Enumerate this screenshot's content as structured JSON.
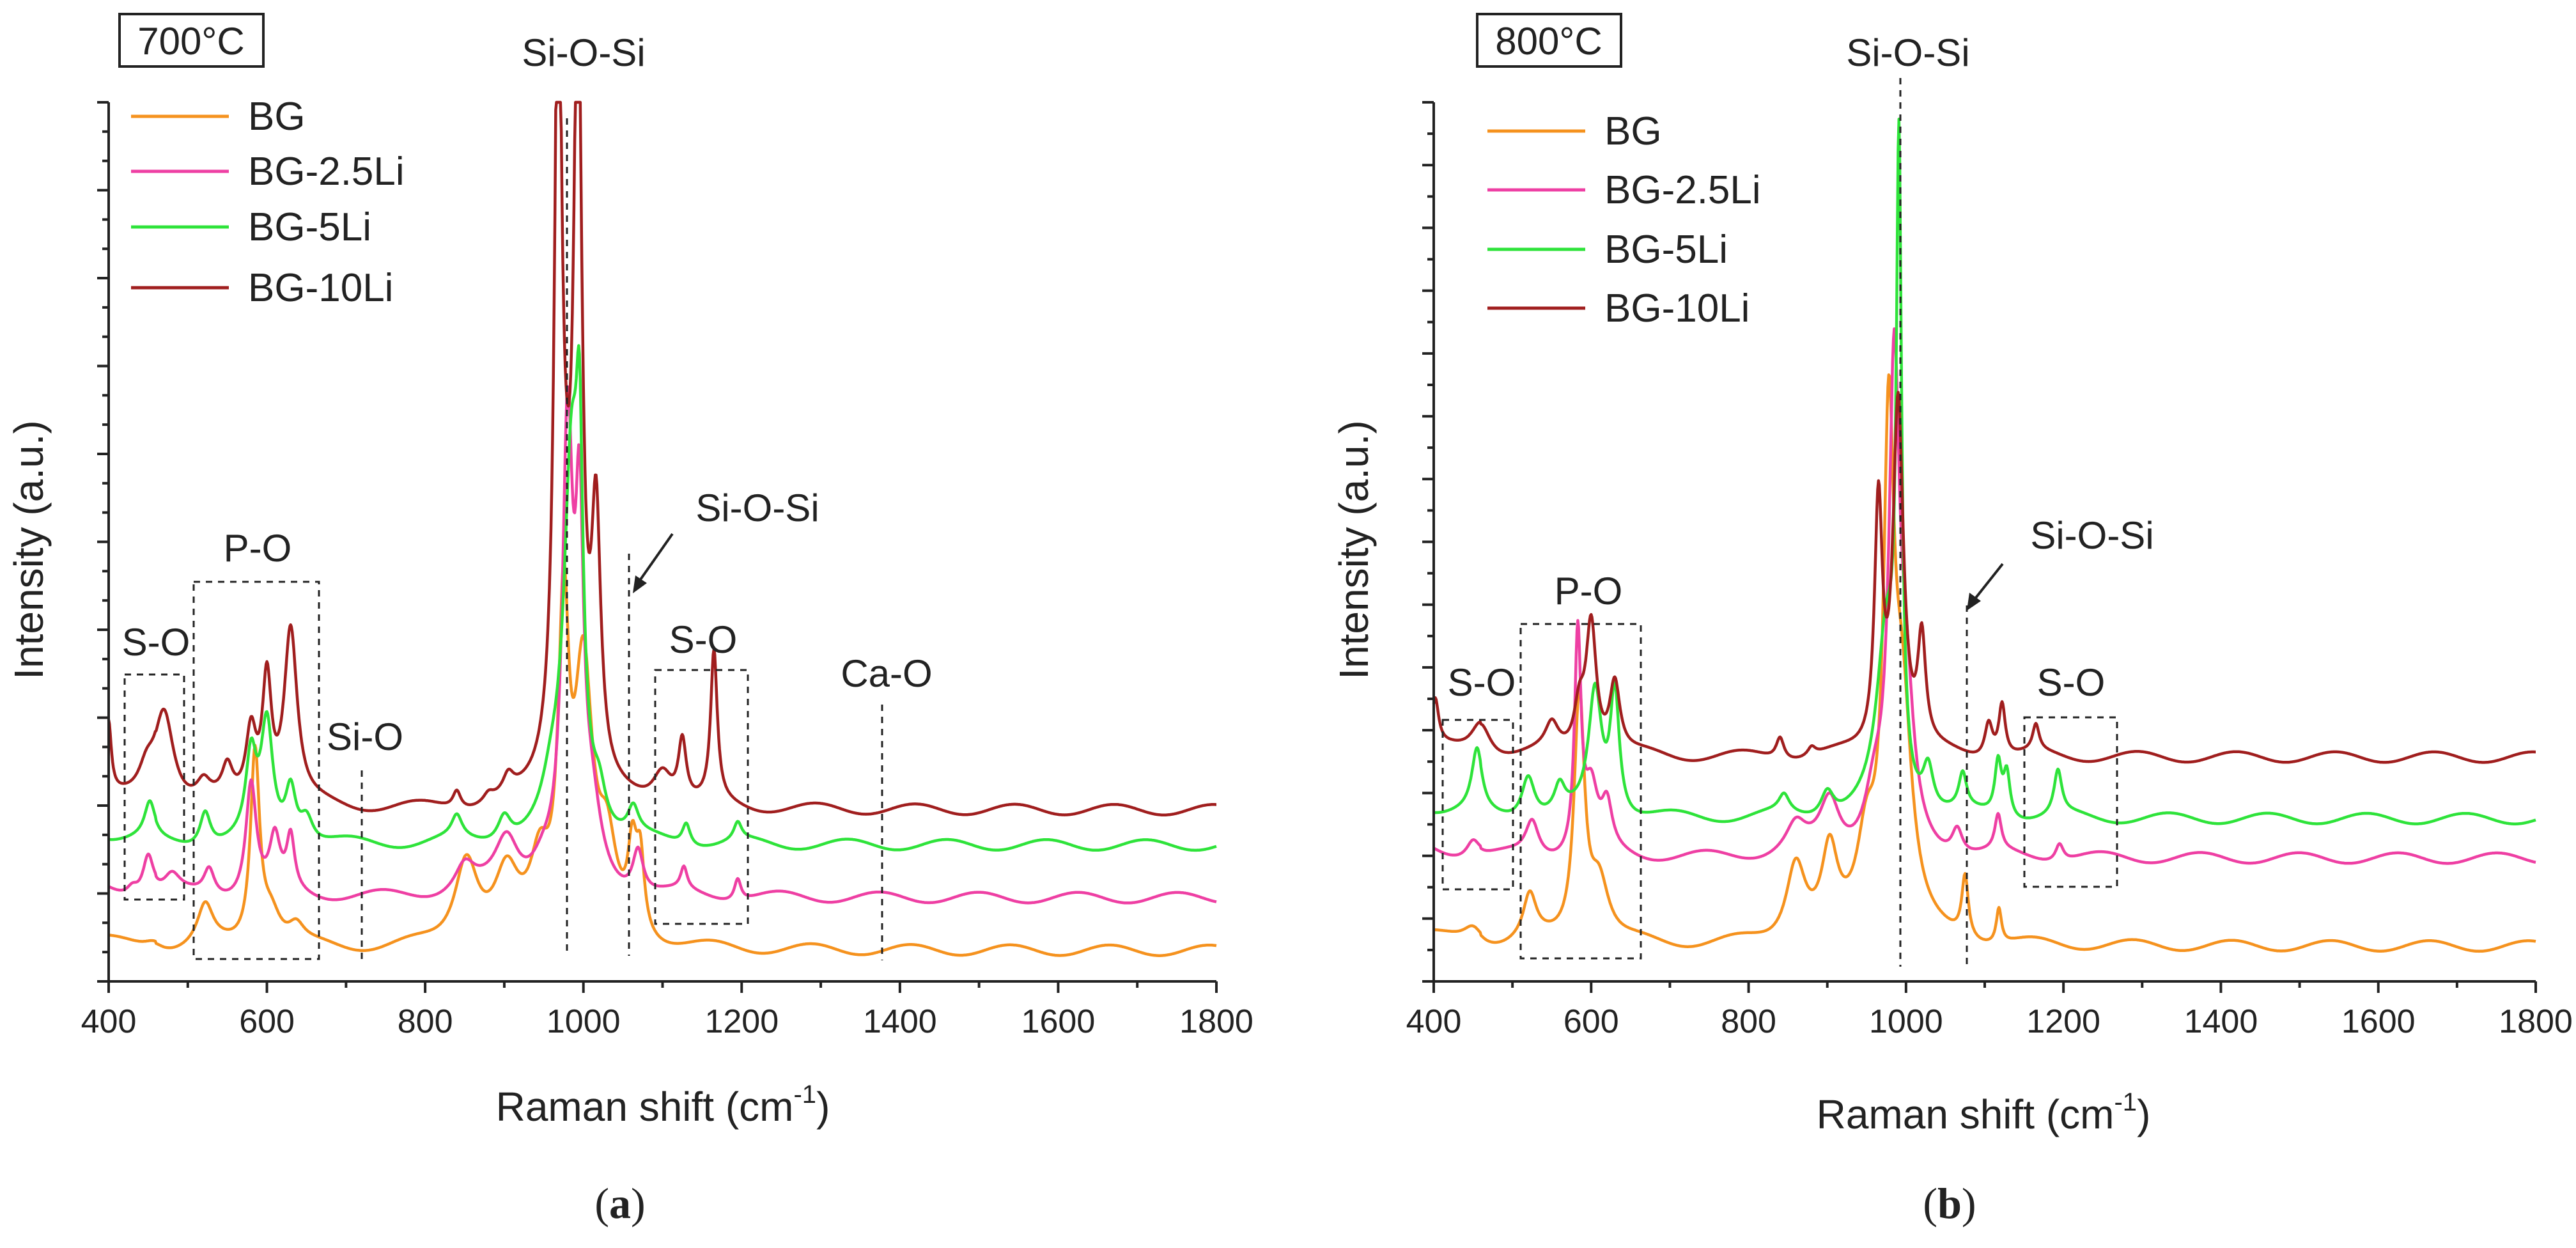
{
  "chart_data": [
    {
      "type": "line",
      "panel_label": "(a)",
      "panel_label_parts": [
        "(",
        "a",
        ")"
      ],
      "temperature_label": "700°C",
      "xlabel": "Raman shift (cm-1)",
      "xlabel_parts": [
        "Raman shift (cm",
        "-1",
        ")"
      ],
      "ylabel": "Intensity (a.u.)",
      "xlim": [
        400,
        1800
      ],
      "ylim": [
        0,
        1
      ],
      "x_ticks": [
        400,
        600,
        800,
        1000,
        1200,
        1400,
        1600,
        1800
      ],
      "grid": false,
      "legend_position": "top-left",
      "series": [
        {
          "name": "BG",
          "color": "#f5921e",
          "baseline": 0.035,
          "noise": 0.006,
          "peaks": [
            [
              457,
              0.01,
              15
            ],
            [
              522,
              0.045,
              12
            ],
            [
              585,
              0.22,
              7
            ],
            [
              605,
              0.04,
              15
            ],
            [
              637,
              0.02,
              12
            ],
            [
              852,
              0.1,
              18
            ],
            [
              903,
              0.07,
              18
            ],
            [
              945,
              0.08,
              15
            ],
            [
              975,
              0.35,
              8
            ],
            [
              1000,
              0.3,
              14
            ],
            [
              1030,
              0.09,
              14
            ],
            [
              1062,
              0.09,
              7
            ],
            [
              1072,
              0.08,
              6
            ]
          ]
        },
        {
          "name": "BG-2.5Li",
          "color": "#ee3fa3",
          "baseline": 0.095,
          "noise": 0.006,
          "peaks": [
            [
              430,
              0.01,
              8
            ],
            [
              450,
              0.045,
              8
            ],
            [
              480,
              0.02,
              12
            ],
            [
              527,
              0.03,
              8
            ],
            [
              580,
              0.13,
              8
            ],
            [
              610,
              0.06,
              8
            ],
            [
              630,
              0.06,
              6
            ],
            [
              850,
              0.03,
              15
            ],
            [
              903,
              0.06,
              18
            ],
            [
              950,
              0.03,
              20
            ],
            [
              980,
              0.5,
              8
            ],
            [
              995,
              0.35,
              6
            ],
            [
              1010,
              0.08,
              15
            ],
            [
              1069,
              0.05,
              8
            ],
            [
              1127,
              0.025,
              5
            ],
            [
              1195,
              0.025,
              5
            ]
          ]
        },
        {
          "name": "BG-5Li",
          "color": "#2ee33a",
          "baseline": 0.155,
          "noise": 0.006,
          "peaks": [
            [
              452,
              0.04,
              8
            ],
            [
              522,
              0.04,
              8
            ],
            [
              580,
              0.09,
              8
            ],
            [
              600,
              0.13,
              9
            ],
            [
              630,
              0.06,
              8
            ],
            [
              650,
              0.03,
              10
            ],
            [
              840,
              0.025,
              8
            ],
            [
              900,
              0.03,
              10
            ],
            [
              960,
              0.04,
              15
            ],
            [
              985,
              0.42,
              12
            ],
            [
              995,
              0.3,
              5
            ],
            [
              1020,
              0.04,
              10
            ],
            [
              1063,
              0.03,
              8
            ],
            [
              1130,
              0.025,
              6
            ],
            [
              1195,
              0.02,
              6
            ]
          ]
        },
        {
          "name": "BG-10Li",
          "color": "#a01e1e",
          "baseline": 0.195,
          "noise": 0.006,
          "peaks": [
            [
              400,
              0.08,
              4
            ],
            [
              448,
              0.03,
              12
            ],
            [
              470,
              0.11,
              15
            ],
            [
              520,
              0.02,
              10
            ],
            [
              550,
              0.035,
              8
            ],
            [
              580,
              0.08,
              8
            ],
            [
              600,
              0.14,
              7
            ],
            [
              630,
              0.2,
              10
            ],
            [
              840,
              0.02,
              6
            ],
            [
              880,
              0.01,
              8
            ],
            [
              905,
              0.02,
              8
            ],
            [
              968,
              0.84,
              5
            ],
            [
              975,
              0.2,
              15
            ],
            [
              993,
              0.86,
              6
            ],
            [
              1016,
              0.29,
              7
            ],
            [
              1100,
              0.04,
              15
            ],
            [
              1125,
              0.07,
              6
            ],
            [
              1165,
              0.17,
              5
            ]
          ]
        }
      ],
      "annotations": [
        {
          "text": "Si-O-Si",
          "x": 990
        },
        {
          "text": "Si-O-Si",
          "x": 1058
        },
        {
          "text": "P-O",
          "x": 590
        },
        {
          "text": "S-O",
          "x": 462
        },
        {
          "text": "S-O",
          "x": 1150
        },
        {
          "text": "Si-O",
          "x": 720
        },
        {
          "text": "Ca-O",
          "x": 1377
        }
      ]
    },
    {
      "type": "line",
      "panel_label": "(b)",
      "panel_label_parts": [
        "(",
        "b",
        ")"
      ],
      "temperature_label": "800°C",
      "xlabel": "Raman shift (cm-1)",
      "xlabel_parts": [
        "Raman shift (cm",
        "-1",
        ")"
      ],
      "ylabel": "Intensity (a.u.)",
      "xlim": [
        400,
        1800
      ],
      "ylim": [
        0,
        1
      ],
      "x_ticks": [
        400,
        600,
        800,
        1000,
        1200,
        1400,
        1600,
        1800
      ],
      "grid": false,
      "legend_position": "top-left",
      "series": [
        {
          "name": "BG",
          "color": "#f5921e",
          "baseline": 0.04,
          "noise": 0.005,
          "peaks": [
            [
              450,
              0.02,
              15
            ],
            [
              522,
              0.05,
              10
            ],
            [
              585,
              0.28,
              8
            ],
            [
              610,
              0.07,
              15
            ],
            [
              860,
              0.09,
              15
            ],
            [
              903,
              0.09,
              12
            ],
            [
              950,
              0.1,
              15
            ],
            [
              978,
              0.52,
              8
            ],
            [
              995,
              0.25,
              15
            ],
            [
              1075,
              0.07,
              5
            ],
            [
              1118,
              0.04,
              4
            ]
          ]
        },
        {
          "name": "BG-2.5Li",
          "color": "#ee3fa3",
          "baseline": 0.14,
          "noise": 0.005,
          "peaks": [
            [
              450,
              0.02,
              10
            ],
            [
              525,
              0.04,
              10
            ],
            [
              583,
              0.25,
              5
            ],
            [
              600,
              0.07,
              10
            ],
            [
              620,
              0.05,
              8
            ],
            [
              860,
              0.03,
              15
            ],
            [
              903,
              0.06,
              15
            ],
            [
              960,
              0.06,
              15
            ],
            [
              985,
              0.52,
              8
            ],
            [
              1000,
              0.15,
              12
            ],
            [
              1065,
              0.03,
              8
            ],
            [
              1117,
              0.04,
              5
            ],
            [
              1195,
              0.02,
              6
            ]
          ]
        },
        {
          "name": "BG-5Li",
          "color": "#2ee33a",
          "baseline": 0.185,
          "noise": 0.005,
          "peaks": [
            [
              455,
              0.07,
              8
            ],
            [
              520,
              0.05,
              10
            ],
            [
              560,
              0.03,
              8
            ],
            [
              605,
              0.14,
              10
            ],
            [
              630,
              0.14,
              7
            ],
            [
              845,
              0.02,
              8
            ],
            [
              900,
              0.03,
              10
            ],
            [
              975,
              0.2,
              15
            ],
            [
              991,
              0.7,
              4
            ],
            [
              1028,
              0.05,
              8
            ],
            [
              1072,
              0.04,
              6
            ],
            [
              1117,
              0.06,
              5
            ],
            [
              1128,
              0.05,
              5
            ],
            [
              1193,
              0.05,
              6
            ]
          ]
        },
        {
          "name": "BG-10Li",
          "color": "#a01e1e",
          "baseline": 0.255,
          "noise": 0.005,
          "peaks": [
            [
              402,
              0.05,
              5
            ],
            [
              460,
              0.04,
              15
            ],
            [
              550,
              0.03,
              10
            ],
            [
              585,
              0.05,
              8
            ],
            [
              600,
              0.15,
              8
            ],
            [
              630,
              0.08,
              8
            ],
            [
              840,
              0.025,
              6
            ],
            [
              880,
              0.01,
              6
            ],
            [
              965,
              0.28,
              6
            ],
            [
              990,
              0.4,
              8
            ],
            [
              1020,
              0.12,
              6
            ],
            [
              1105,
              0.04,
              6
            ],
            [
              1122,
              0.06,
              5
            ],
            [
              1165,
              0.03,
              5
            ]
          ]
        }
      ],
      "annotations": [
        {
          "text": "Si-O-Si",
          "x": 990
        },
        {
          "text": "Si-O-Si",
          "x": 1075
        },
        {
          "text": "P-O",
          "x": 590
        },
        {
          "text": "S-O",
          "x": 453
        },
        {
          "text": "S-O",
          "x": 1205
        }
      ]
    }
  ]
}
